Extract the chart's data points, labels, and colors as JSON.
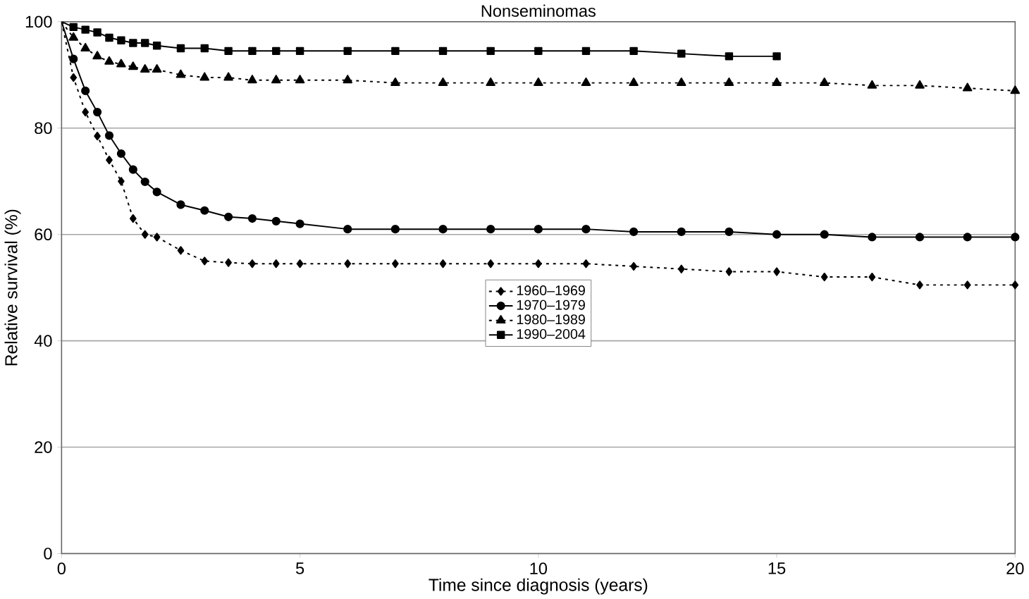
{
  "chart_data": {
    "type": "line",
    "title": "Nonseminomas",
    "xlabel": "Time since diagnosis (years)",
    "ylabel": "Relative survival (%)",
    "x": [
      0,
      0.25,
      0.5,
      0.75,
      1,
      1.25,
      1.5,
      1.75,
      2,
      2.5,
      3,
      3.5,
      4,
      4.5,
      5,
      6,
      7,
      8,
      9,
      10,
      11,
      12,
      13,
      14,
      15,
      16,
      17,
      18,
      19,
      20
    ],
    "series": [
      {
        "name": "1960–1969",
        "color": "#000000",
        "marker": "diamond",
        "line_style": "dotted",
        "values": [
          100,
          89.5,
          83,
          78.5,
          74,
          70,
          63,
          60,
          59.5,
          57,
          55,
          54.7,
          54.5,
          54.5,
          54.5,
          54.5,
          54.5,
          54.5,
          54.5,
          54.5,
          54.5,
          54,
          53.5,
          53,
          53,
          52,
          52,
          50.5,
          50.5,
          50.5
        ]
      },
      {
        "name": "1970–1979",
        "color": "#000000",
        "marker": "circle",
        "line_style": "solid",
        "values": [
          100,
          93,
          87,
          83,
          78.6,
          75.2,
          72.2,
          69.9,
          68,
          65.6,
          64.5,
          63.3,
          63,
          62.5,
          62,
          61,
          61,
          61,
          61,
          61,
          61,
          60.5,
          60.5,
          60.5,
          60,
          60,
          59.5,
          59.5,
          59.5,
          59.5
        ]
      },
      {
        "name": "1980–1989",
        "color": "#000000",
        "marker": "triangle",
        "line_style": "dotted",
        "values": [
          100,
          97,
          95,
          93.5,
          92.5,
          92,
          91.5,
          91,
          91,
          90,
          89.5,
          89.5,
          89,
          89,
          89,
          89,
          88.5,
          88.5,
          88.5,
          88.5,
          88.5,
          88.5,
          88.5,
          88.5,
          88.5,
          88.5,
          88,
          88,
          87.5,
          87
        ]
      },
      {
        "name": "1990–2004",
        "color": "#000000",
        "marker": "square",
        "line_style": "solid",
        "x": [
          0,
          0.25,
          0.5,
          0.75,
          1,
          1.25,
          1.5,
          1.75,
          2,
          2.5,
          3,
          3.5,
          4,
          4.5,
          5,
          6,
          7,
          8,
          9,
          10,
          11,
          12,
          13,
          14,
          15
        ],
        "values": [
          100,
          99,
          98.5,
          98,
          97,
          96.5,
          96,
          96,
          95.5,
          95,
          95,
          94.5,
          94.5,
          94.5,
          94.5,
          94.5,
          94.5,
          94.5,
          94.5,
          94.5,
          94.5,
          94.5,
          94,
          93.5,
          93.5
        ]
      }
    ],
    "xlim": [
      0,
      20
    ],
    "xticks": [
      0,
      5,
      10,
      15,
      20
    ],
    "ylim": [
      0,
      100
    ],
    "yticks": [
      0,
      20,
      40,
      60,
      80,
      100
    ],
    "grid": "y",
    "legend": "center"
  }
}
